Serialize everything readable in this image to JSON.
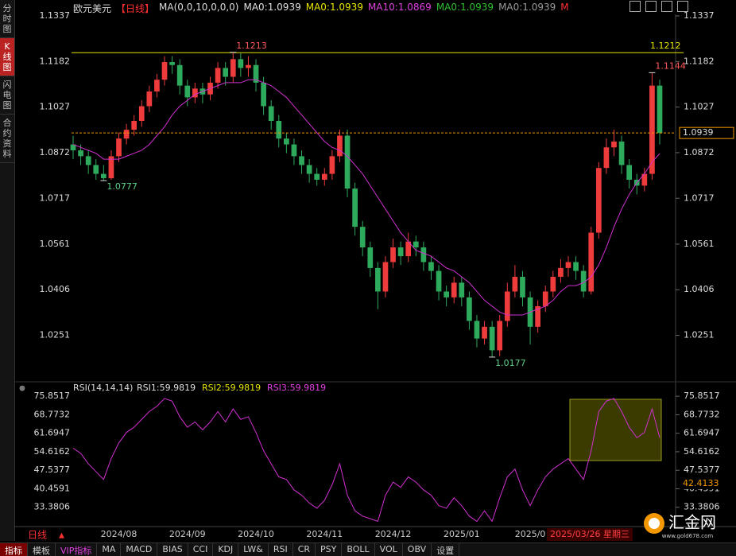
{
  "header": {
    "symbol": "欧元美元",
    "period": "【日线】",
    "ma_params": "MA(0,0,10,0,0,0)",
    "ma_items": [
      {
        "text": "MA0:1.0939",
        "color": "#e0e0e0"
      },
      {
        "text": "MA0:1.0939",
        "color": "#e6e600"
      },
      {
        "text": "MA10:1.0869",
        "color": "#e040e0"
      },
      {
        "text": "MA0:1.0939",
        "color": "#30c030"
      },
      {
        "text": "MA0:1.0939",
        "color": "#9a9a9a"
      },
      {
        "text": "M",
        "color": "#ff3030"
      }
    ]
  },
  "sidebar": [
    "分时图",
    "K线图",
    "闪电图",
    "合约资料"
  ],
  "toolbar": [
    "指标",
    "模板",
    "VIP指标",
    "MA",
    "MACD",
    "BIAS",
    "CCI",
    "KDJ",
    "LW&",
    "RSI",
    "CR",
    "PSY",
    "BOLL",
    "VOL",
    "OBV",
    "设置"
  ],
  "period_tab": "日线",
  "cursor_date": "2025/03/26 星期三",
  "logo": {
    "name": "汇金网",
    "url": "www.gold678.com"
  },
  "chart_data": [
    {
      "type": "candlestick",
      "categories": [
        null,
        null,
        null,
        null,
        null,
        null,
        "2024/08",
        null,
        null,
        null,
        null,
        null,
        null,
        null,
        null,
        "2024/09",
        null,
        null,
        null,
        null,
        null,
        null,
        null,
        null,
        "2024/10",
        null,
        null,
        null,
        null,
        null,
        null,
        null,
        null,
        "2024/11",
        null,
        null,
        null,
        null,
        null,
        null,
        null,
        null,
        "2024/12",
        null,
        null,
        null,
        null,
        null,
        null,
        null,
        null,
        "2025/01",
        null,
        null,
        null,
        null,
        null,
        null,
        null,
        null,
        "2025/0",
        null,
        null,
        null,
        null,
        null,
        null,
        null,
        null,
        null,
        null,
        null,
        null,
        null,
        null,
        null,
        null,
        null
      ],
      "open": [
        1.09,
        1.088,
        1.086,
        1.083,
        1.08,
        1.0785,
        1.086,
        1.092,
        1.095,
        1.098,
        1.103,
        1.108,
        1.112,
        1.118,
        1.117,
        1.11,
        1.106,
        1.109,
        1.107,
        1.111,
        1.116,
        1.113,
        1.119,
        1.116,
        1.117,
        1.111,
        1.103,
        1.098,
        1.092,
        1.09,
        1.086,
        1.083,
        1.08,
        1.078,
        1.08,
        1.086,
        1.093,
        1.075,
        1.062,
        1.055,
        1.048,
        1.04,
        1.05,
        1.055,
        1.052,
        1.057,
        1.055,
        1.05,
        1.047,
        1.04,
        1.038,
        1.043,
        1.038,
        1.03,
        1.024,
        1.028,
        1.02,
        1.03,
        1.04,
        1.045,
        1.038,
        1.028,
        1.035,
        1.04,
        1.045,
        1.048,
        1.05,
        1.047,
        1.04,
        1.06,
        1.082,
        1.089,
        1.091,
        1.083,
        1.078,
        1.076,
        1.08,
        1.11
      ],
      "high": [
        1.093,
        1.09,
        1.088,
        1.085,
        1.083,
        1.088,
        1.094,
        1.097,
        1.1,
        1.105,
        1.11,
        1.114,
        1.12,
        1.12,
        1.119,
        1.112,
        1.111,
        1.111,
        1.113,
        1.118,
        1.118,
        1.1213,
        1.121,
        1.12,
        1.119,
        1.113,
        1.105,
        1.1,
        1.094,
        1.092,
        1.088,
        1.085,
        1.082,
        1.082,
        1.088,
        1.095,
        1.095,
        1.077,
        1.064,
        1.057,
        1.05,
        1.052,
        1.058,
        1.057,
        1.06,
        1.059,
        1.057,
        1.052,
        1.049,
        1.042,
        1.045,
        1.045,
        1.04,
        1.032,
        1.03,
        1.03,
        1.032,
        1.043,
        1.049,
        1.047,
        1.04,
        1.037,
        1.042,
        1.047,
        1.051,
        1.052,
        1.052,
        1.049,
        1.062,
        1.084,
        1.092,
        1.095,
        1.093,
        1.085,
        1.08,
        1.082,
        1.1144,
        1.112
      ],
      "low": [
        1.085,
        1.083,
        1.08,
        1.078,
        1.0777,
        1.078,
        1.084,
        1.09,
        1.093,
        1.096,
        1.101,
        1.106,
        1.11,
        1.114,
        1.107,
        1.103,
        1.104,
        1.104,
        1.105,
        1.109,
        1.11,
        1.111,
        1.113,
        1.113,
        1.108,
        1.1,
        1.095,
        1.089,
        1.087,
        1.083,
        1.08,
        1.077,
        1.076,
        1.076,
        1.078,
        1.084,
        1.072,
        1.059,
        1.052,
        1.045,
        1.034,
        1.038,
        1.048,
        1.049,
        1.05,
        1.052,
        1.047,
        1.044,
        1.037,
        1.035,
        1.036,
        1.035,
        1.027,
        1.021,
        1.022,
        1.0177,
        1.018,
        1.028,
        1.038,
        1.035,
        1.022,
        1.026,
        1.033,
        1.038,
        1.043,
        1.045,
        1.044,
        1.038,
        1.039,
        1.058,
        1.08,
        1.086,
        1.08,
        1.075,
        1.073,
        1.074,
        1.078,
        1.09
      ],
      "close": [
        1.088,
        1.086,
        1.083,
        1.08,
        1.0785,
        1.086,
        1.092,
        1.095,
        1.098,
        1.103,
        1.108,
        1.112,
        1.118,
        1.117,
        1.11,
        1.106,
        1.109,
        1.107,
        1.111,
        1.116,
        1.113,
        1.119,
        1.116,
        1.117,
        1.111,
        1.103,
        1.098,
        1.092,
        1.09,
        1.086,
        1.083,
        1.08,
        1.078,
        1.08,
        1.086,
        1.093,
        1.075,
        1.062,
        1.055,
        1.048,
        1.04,
        1.05,
        1.055,
        1.052,
        1.057,
        1.055,
        1.05,
        1.047,
        1.04,
        1.038,
        1.043,
        1.038,
        1.03,
        1.024,
        1.028,
        1.02,
        1.03,
        1.04,
        1.045,
        1.038,
        1.028,
        1.035,
        1.04,
        1.045,
        1.048,
        1.05,
        1.047,
        1.04,
        1.06,
        1.082,
        1.089,
        1.091,
        1.083,
        1.078,
        1.076,
        1.08,
        1.11,
        1.0939
      ],
      "series": [
        {
          "name": "MA10",
          "color": "#d030d0",
          "values": [
            1.09,
            1.089,
            1.088,
            1.087,
            1.085,
            1.085,
            1.085,
            1.086,
            1.087,
            1.088,
            1.09,
            1.093,
            1.096,
            1.1,
            1.103,
            1.105,
            1.107,
            1.108,
            1.109,
            1.11,
            1.111,
            1.111,
            1.111,
            1.112,
            1.112,
            1.111,
            1.11,
            1.108,
            1.106,
            1.103,
            1.1,
            1.097,
            1.094,
            1.091,
            1.089,
            1.088,
            1.086,
            1.083,
            1.08,
            1.076,
            1.072,
            1.068,
            1.064,
            1.06,
            1.057,
            1.054,
            1.053,
            1.052,
            1.05,
            1.048,
            1.047,
            1.045,
            1.043,
            1.04,
            1.037,
            1.035,
            1.033,
            1.032,
            1.032,
            1.032,
            1.033,
            1.034,
            1.035,
            1.037,
            1.04,
            1.042,
            1.042,
            1.043,
            1.045,
            1.049,
            1.055,
            1.062,
            1.068,
            1.073,
            1.077,
            1.08,
            1.084,
            1.0869
          ]
        }
      ],
      "up_color": "#ee3b3b",
      "down_color": "#2eaa5c",
      "hline": 1.1212,
      "ylim": [
        1.012,
        1.1337
      ],
      "yticks": [
        1.1337,
        1.1182,
        1.1027,
        1.0872,
        1.0717,
        1.0561,
        1.0406,
        1.0251
      ]
    },
    {
      "type": "line",
      "title": "RSI(14,14,14)",
      "legend": [
        {
          "text": "RSI1:59.9819",
          "color": "#e0e0e0"
        },
        {
          "text": "RSI2:59.9819",
          "color": "#e6e600"
        },
        {
          "text": "RSI3:59.9819",
          "color": "#e040e0"
        }
      ],
      "series": [
        {
          "name": "RSI",
          "color": "#d030d0",
          "values": [
            56,
            54,
            50,
            47,
            44,
            52,
            58,
            62,
            64,
            67,
            70,
            72,
            75,
            74,
            68,
            64,
            66,
            63,
            66,
            70,
            66,
            71,
            67,
            68,
            62,
            55,
            50,
            45,
            44,
            40,
            38,
            35,
            33,
            36,
            42,
            50,
            38,
            32,
            30,
            29,
            28,
            38,
            43,
            41,
            45,
            43,
            40,
            38,
            34,
            33,
            37,
            34,
            30,
            28,
            32,
            28,
            37,
            45,
            48,
            40,
            34,
            40,
            45,
            48,
            50,
            52,
            48,
            44,
            55,
            70,
            74,
            75,
            70,
            64,
            60,
            62,
            71,
            59.9819
          ]
        }
      ],
      "cursor_value": 42.4133,
      "ylim": [
        26.6,
        79.85
      ],
      "yticks": [
        75.8517,
        68.7732,
        61.6947,
        54.6162,
        47.5377,
        40.4591,
        33.3806
      ]
    }
  ]
}
